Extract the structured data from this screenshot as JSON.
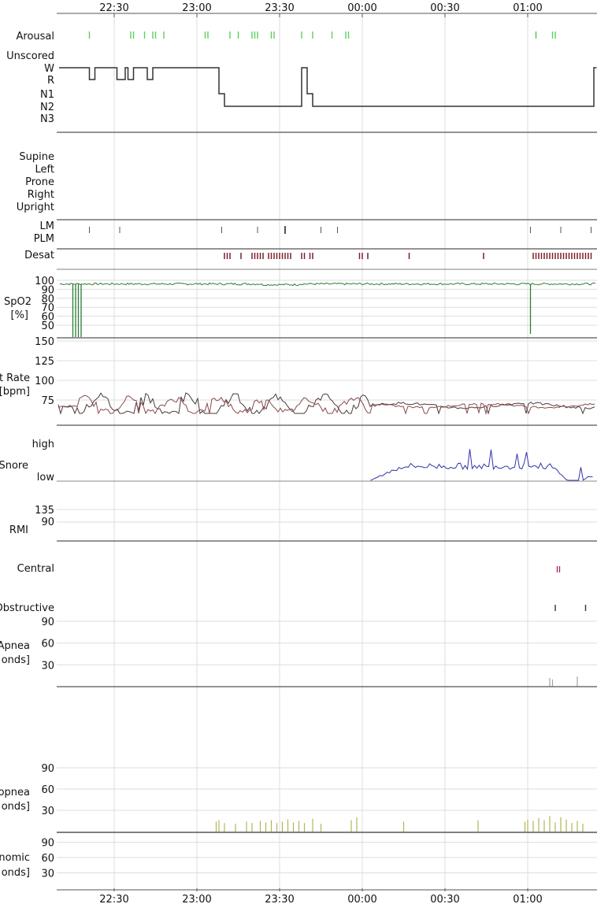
{
  "chart_data": {
    "type": "line",
    "time_axis": {
      "ticks": [
        "22:30",
        "23:00",
        "23:30",
        "00:00",
        "00:30",
        "01:00"
      ],
      "start": "22:10",
      "end": "01:25"
    },
    "panels": {
      "sleep": {
        "labels": [
          "Arousal",
          "Unscored",
          "W",
          "R",
          "N1",
          "N2",
          "N3"
        ],
        "arousal_times": [
          "22:21",
          "22:36",
          "22:37",
          "22:41",
          "22:44",
          "22:45",
          "22:48",
          "23:03",
          "23:04",
          "23:12",
          "23:15",
          "23:20",
          "23:21",
          "23:22",
          "23:27",
          "23:28",
          "23:38",
          "23:42",
          "23:49",
          "23:54",
          "23:55",
          "01:03",
          "01:03",
          "01:09",
          "01:10"
        ],
        "hypnogram": [
          [
            "22:10",
            "W"
          ],
          [
            "22:21",
            "R"
          ],
          [
            "22:23",
            "W"
          ],
          [
            "22:31",
            "R"
          ],
          [
            "22:34",
            "W"
          ],
          [
            "22:35",
            "R"
          ],
          [
            "22:37",
            "W"
          ],
          [
            "22:42",
            "R"
          ],
          [
            "22:44",
            "W"
          ],
          [
            "23:08",
            "N1"
          ],
          [
            "23:10",
            "N2"
          ],
          [
            "23:38",
            "W"
          ],
          [
            "23:40",
            "N1"
          ],
          [
            "23:42",
            "N2"
          ],
          [
            "01:24",
            "W"
          ],
          [
            "01:25",
            "W"
          ]
        ]
      },
      "position": {
        "labels": [
          "Supine",
          "Left",
          "Prone",
          "Right",
          "Upright"
        ]
      },
      "movements": {
        "labels": [
          "LM",
          "PLM"
        ],
        "lm_times": [
          "22:21",
          "22:32",
          "23:09",
          "23:22",
          "23:32",
          "23:45",
          "23:51",
          "01:01",
          "01:12",
          "01:23"
        ],
        "lm_heavy_times": [
          "23:32"
        ]
      },
      "desat": {
        "label": "Desat",
        "times": [
          "23:10",
          "23:11",
          "23:12",
          "23:16",
          "23:20",
          "23:21",
          "23:22",
          "23:23",
          "23:24",
          "23:26",
          "23:27",
          "23:28",
          "23:29",
          "23:30",
          "23:31",
          "23:32",
          "23:33",
          "23:34",
          "23:38",
          "23:39",
          "23:41",
          "23:42",
          "23:59",
          "24:00",
          "24:02",
          "24:17",
          "24:44",
          "25:02",
          "25:03",
          "25:04",
          "25:05",
          "25:06",
          "25:07",
          "25:08",
          "25:09",
          "25:10",
          "25:11",
          "25:12",
          "25:13",
          "25:14",
          "25:15",
          "25:16",
          "25:17",
          "25:18",
          "25:19",
          "25:20",
          "25:21",
          "25:22",
          "25:23"
        ]
      },
      "spo2": {
        "labels": [
          "SpO2",
          "[%]"
        ],
        "ticks": [
          100,
          90,
          80,
          70,
          60,
          50
        ],
        "baseline": 96,
        "dropouts": [
          "22:15",
          "22:16",
          "22:17",
          "22:18",
          "01:01"
        ]
      },
      "heart_rate": {
        "labels": [
          "t Rate",
          "[bpm]"
        ],
        "ticks": [
          150,
          125,
          100,
          75
        ],
        "baseline": 68
      },
      "snore": {
        "labels": [
          "Snore",
          "high",
          "low"
        ],
        "active_start": "00:03",
        "active_end": "01:24"
      },
      "rmi": {
        "label": "RMI",
        "ticks": [
          135,
          90
        ]
      },
      "apnea": {
        "labels": [
          "Central",
          "Obstructive",
          "Apnea",
          "onds]"
        ],
        "ticks": [
          90,
          60,
          30
        ],
        "central_times": [
          "01:11"
        ],
        "obstructive_times": [
          "01:10",
          "01:21"
        ],
        "events": [
          {
            "t": "01:08",
            "v": 12
          },
          {
            "t": "01:09",
            "v": 10
          },
          {
            "t": "01:18",
            "v": 14
          }
        ]
      },
      "hypopnea": {
        "labels": [
          "opnea",
          "onds]"
        ],
        "ticks": [
          90,
          60,
          30
        ],
        "events": [
          {
            "t": "23:07",
            "v": 14
          },
          {
            "t": "23:08",
            "v": 16
          },
          {
            "t": "23:10",
            "v": 12
          },
          {
            "t": "23:14",
            "v": 11
          },
          {
            "t": "23:18",
            "v": 14
          },
          {
            "t": "23:20",
            "v": 12
          },
          {
            "t": "23:23",
            "v": 15
          },
          {
            "t": "23:25",
            "v": 13
          },
          {
            "t": "23:27",
            "v": 16
          },
          {
            "t": "23:29",
            "v": 12
          },
          {
            "t": "23:31",
            "v": 14
          },
          {
            "t": "23:33",
            "v": 17
          },
          {
            "t": "23:35",
            "v": 13
          },
          {
            "t": "23:37",
            "v": 15
          },
          {
            "t": "23:39",
            "v": 12
          },
          {
            "t": "23:42",
            "v": 18
          },
          {
            "t": "23:45",
            "v": 11
          },
          {
            "t": "23:56",
            "v": 16
          },
          {
            "t": "23:58",
            "v": 20
          },
          {
            "t": "00:15",
            "v": 14
          },
          {
            "t": "00:42",
            "v": 16
          },
          {
            "t": "00:59",
            "v": 14
          },
          {
            "t": "01:00",
            "v": 17
          },
          {
            "t": "01:02",
            "v": 15
          },
          {
            "t": "01:04",
            "v": 19
          },
          {
            "t": "01:06",
            "v": 16
          },
          {
            "t": "01:08",
            "v": 22
          },
          {
            "t": "01:10",
            "v": 13
          },
          {
            "t": "01:12",
            "v": 20
          },
          {
            "t": "01:14",
            "v": 17
          },
          {
            "t": "01:16",
            "v": 12
          },
          {
            "t": "01:18",
            "v": 15
          },
          {
            "t": "01:20",
            "v": 11
          }
        ]
      },
      "autonomic": {
        "labels": [
          "nomic",
          "onds]"
        ],
        "ticks": [
          90,
          60,
          30
        ]
      }
    },
    "colors": {
      "arousal": "#5cd05c",
      "hypnogram": "#333333",
      "lm": "#555555",
      "desat": "#7a1f2b",
      "spo2": "#2e7d32",
      "heart_rate_1": "#4a3a3a",
      "heart_rate_2": "#8a4a4a",
      "snore": "#3333aa",
      "central": "#aa2266",
      "obstructive": "#333333",
      "apnea_event": "#9aa5b0",
      "hypopnea_event": "#b4b455",
      "grid": "#dddddd",
      "separator": "#555555"
    }
  }
}
